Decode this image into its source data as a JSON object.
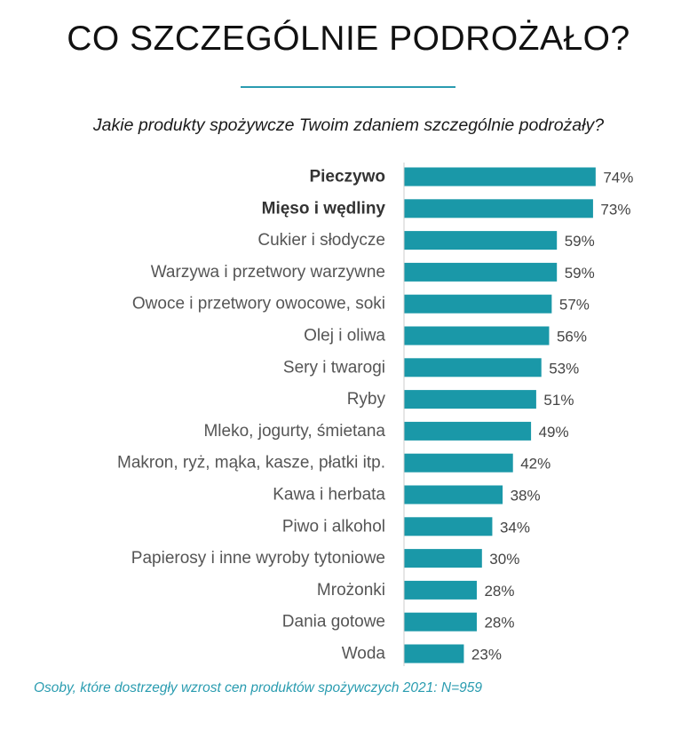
{
  "title": "CO SZCZEGÓLNIE PODROŻAŁO?",
  "subtitle": "Jakie produkty spożywcze Twoim zdaniem szczególnie podrożały?",
  "footnote": "Osoby, które dostrzegły wzrost cen produktów spożywczych 2021: N=959",
  "colors": {
    "bar": "#1a98a8",
    "accent": "#2a9cb0",
    "axis": "#cccccc"
  },
  "chart_data": {
    "type": "bar",
    "orientation": "horizontal",
    "categories": [
      "Pieczywo",
      "Mięso i wędliny",
      "Cukier i słodycze",
      "Warzywa i przetwory warzywne",
      "Owoce i przetwory owocowe, soki",
      "Olej i oliwa",
      "Sery i twarogi",
      "Ryby",
      "Mleko, jogurty, śmietana",
      "Makron, ryż, mąka, kasze, płatki itp.",
      "Kawa i herbata",
      "Piwo i alkohol",
      "Papierosy i inne wyroby tytoniowe",
      "Mrożonki",
      "Dania gotowe",
      "Woda"
    ],
    "values": [
      74,
      73,
      59,
      59,
      57,
      56,
      53,
      51,
      49,
      42,
      38,
      34,
      30,
      28,
      28,
      23
    ],
    "value_labels": [
      "74%",
      "73%",
      "59%",
      "59%",
      "57%",
      "56%",
      "53%",
      "51%",
      "49%",
      "42%",
      "38%",
      "34%",
      "30%",
      "28%",
      "28%",
      "23%"
    ],
    "bold_categories": [
      "Pieczywo",
      "Mięso i wędliny"
    ],
    "unit": "%",
    "xlim": [
      0,
      100
    ],
    "grid": false
  }
}
